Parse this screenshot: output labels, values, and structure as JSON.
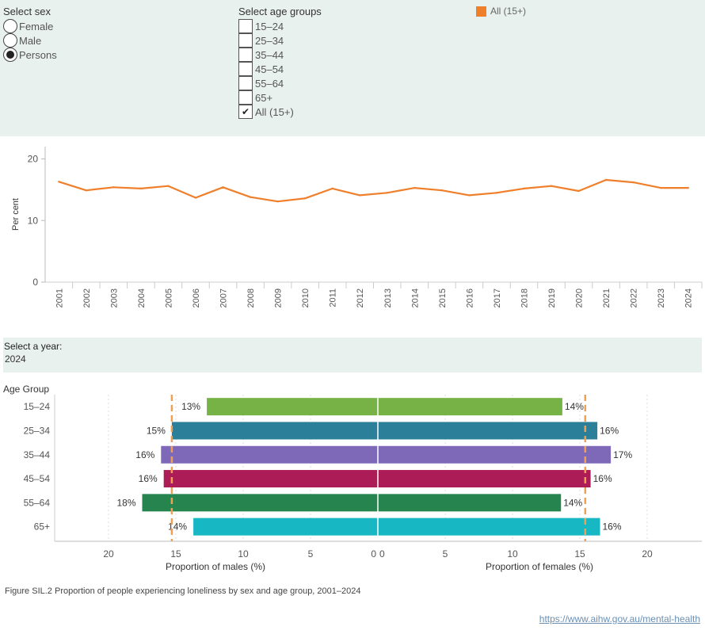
{
  "filters": {
    "sex": {
      "title": "Select sex",
      "options": [
        {
          "label": "Female",
          "selected": false
        },
        {
          "label": "Male",
          "selected": false
        },
        {
          "label": "Persons",
          "selected": true
        }
      ]
    },
    "age": {
      "title": "Select age groups",
      "options": [
        {
          "label": "15–24",
          "checked": false
        },
        {
          "label": "25–34",
          "checked": false
        },
        {
          "label": "35–44",
          "checked": false
        },
        {
          "label": "45–54",
          "checked": false
        },
        {
          "label": "55–64",
          "checked": false
        },
        {
          "label": "65+",
          "checked": false
        },
        {
          "label": "All (15+)",
          "checked": true
        }
      ]
    },
    "legend": {
      "label": "All (15+)",
      "color": "#f07f2b"
    }
  },
  "year_select": {
    "label": "Select a year:",
    "value": "2024"
  },
  "chart_data": [
    {
      "type": "line",
      "ylabel": "Per cent",
      "ylim": [
        0,
        22
      ],
      "yticks": [
        0,
        10,
        20
      ],
      "x": [
        "2001",
        "2002",
        "2003",
        "2004",
        "2005",
        "2006",
        "2007",
        "2008",
        "2009",
        "2010",
        "2011",
        "2012",
        "2013",
        "2014",
        "2015",
        "2016",
        "2017",
        "2018",
        "2019",
        "2020",
        "2021",
        "2022",
        "2023",
        "2024"
      ],
      "series": [
        {
          "name": "All (15+)",
          "color": "#f07f2b",
          "values": [
            16.3,
            14.9,
            15.4,
            15.2,
            15.6,
            13.7,
            15.4,
            13.8,
            13.1,
            13.6,
            15.2,
            14.1,
            14.5,
            15.3,
            14.9,
            14.1,
            14.5,
            15.2,
            15.6,
            14.8,
            16.6,
            16.2,
            15.3,
            15.3
          ]
        }
      ]
    },
    {
      "type": "bar",
      "title": "Age Group",
      "categories": [
        "15–24",
        "25–34",
        "35–44",
        "45–54",
        "55–64",
        "65+"
      ],
      "colors": [
        "#76b245",
        "#2b7f99",
        "#7d69b7",
        "#ac1d58",
        "#26844e",
        "#17b7c4"
      ],
      "males": {
        "xlabel": "Proportion of males (%)",
        "values": [
          12.7,
          15.3,
          16.1,
          15.9,
          17.5,
          13.7
        ],
        "labels": [
          "13%",
          "15%",
          "16%",
          "16%",
          "18%",
          "14%"
        ],
        "reference": 15.3
      },
      "females": {
        "xlabel": "Proportion of females (%)",
        "values": [
          13.7,
          16.3,
          17.3,
          15.8,
          13.6,
          16.5
        ],
        "labels": [
          "14%",
          "16%",
          "17%",
          "16%",
          "14%",
          "16%"
        ],
        "reference": 15.4
      },
      "xticks": [
        0,
        5,
        10,
        15,
        20
      ],
      "xlim": [
        0,
        23.5
      ]
    }
  ],
  "caption": "Figure SIL.2 Proportion of people experiencing loneliness by sex and age group, 2001–2024",
  "source_link": "https://www.aihw.gov.au/mental-health"
}
